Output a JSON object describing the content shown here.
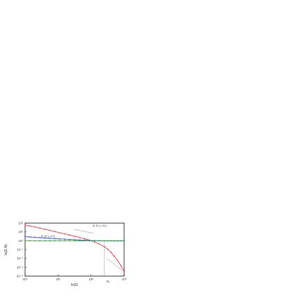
{
  "chart_data": {
    "type": "scatter",
    "title": "",
    "xlabel": "Ie(E)",
    "ylabel": "Ie(E,N)",
    "xscale": "log",
    "yscale": "log",
    "xlim": [
      1,
      1000
    ],
    "ylim": [
      0.0001,
      100
    ],
    "grid": false,
    "x_ticks": [
      "10⁰",
      "10¹",
      "10²",
      "10³"
    ],
    "y_ticks": [
      "10²",
      "10¹",
      "10⁰",
      "10⁻¹",
      "10⁻²",
      "10⁻³",
      "10⁻⁴"
    ],
    "vertical_marker": {
      "x": 250,
      "label": "E₀"
    },
    "annotations": [
      "|E-E|^{-3/4}",
      "|E-E|^{-1/2}"
    ],
    "colors": {
      "red": "#e8404a",
      "blue": "#3a4fd8",
      "green": "#2e9e3a",
      "frame": "#000000"
    },
    "series": [
      {
        "color": "red",
        "marker": "dot",
        "x": [
          1.0,
          1.4,
          2.0,
          2.8,
          4.0,
          5.6,
          8.0,
          11,
          16,
          22,
          32,
          45,
          64,
          90,
          128,
          180,
          250,
          320,
          400,
          500,
          630,
          800,
          1000
        ],
        "y": [
          60,
          48,
          36,
          27,
          20,
          15,
          11,
          8.2,
          6.0,
          4.5,
          3.3,
          2.4,
          1.7,
          1.15,
          0.75,
          0.42,
          0.22,
          0.11,
          0.05,
          0.018,
          0.006,
          0.0015,
          0.0003
        ]
      },
      {
        "color": "blue",
        "marker": "dot",
        "x": [
          1.0,
          1.4,
          2.0,
          2.8,
          4.0,
          5.6,
          8.0,
          11,
          16,
          22,
          32,
          45,
          64,
          90,
          128,
          180,
          250,
          320,
          400,
          500,
          630,
          800,
          1000
        ],
        "y": [
          3.0,
          2.7,
          2.45,
          2.25,
          2.05,
          1.9,
          1.75,
          1.62,
          1.5,
          1.4,
          1.3,
          1.22,
          1.15,
          1.1,
          1.05,
          1.02,
          1.0,
          0.98,
          0.97,
          0.97,
          0.97,
          0.97,
          0.97
        ]
      },
      {
        "color": "green",
        "marker": "dot",
        "x": [
          1.0,
          1.4,
          2.0,
          2.8,
          4.0,
          5.6,
          8.0,
          11,
          16,
          22,
          32,
          45,
          64,
          90,
          128,
          180,
          250,
          320,
          400,
          500,
          630,
          800,
          1000
        ],
        "y": [
          1,
          1,
          1,
          1,
          1,
          1,
          1,
          1,
          1,
          1,
          1,
          1,
          1,
          1,
          1,
          1,
          1,
          1,
          1,
          1,
          1,
          1,
          1
        ]
      }
    ]
  }
}
